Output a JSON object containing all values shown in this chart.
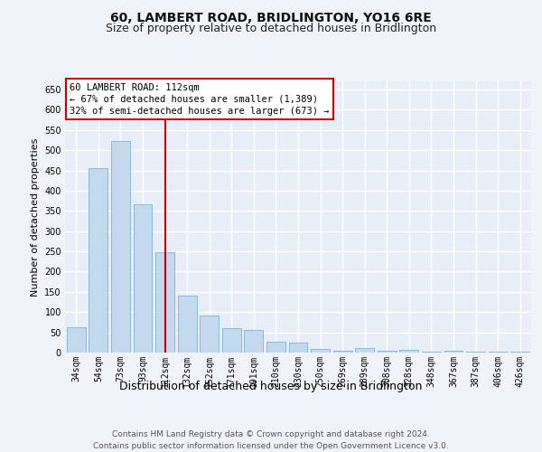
{
  "title": "60, LAMBERT ROAD, BRIDLINGTON, YO16 6RE",
  "subtitle": "Size of property relative to detached houses in Bridlington",
  "xlabel": "Distribution of detached houses by size in Bridlington",
  "ylabel": "Number of detached properties",
  "categories": [
    "34sqm",
    "54sqm",
    "73sqm",
    "93sqm",
    "112sqm",
    "132sqm",
    "152sqm",
    "171sqm",
    "191sqm",
    "210sqm",
    "230sqm",
    "250sqm",
    "269sqm",
    "289sqm",
    "308sqm",
    "328sqm",
    "348sqm",
    "367sqm",
    "387sqm",
    "406sqm",
    "426sqm"
  ],
  "values": [
    62,
    456,
    522,
    367,
    247,
    140,
    92,
    60,
    56,
    26,
    25,
    8,
    5,
    11,
    5,
    7,
    3,
    5,
    2,
    2,
    2
  ],
  "bar_color": "#c2d9ee",
  "bar_edge_color": "#7fb3d8",
  "highlight_index": 4,
  "highlight_line_color": "#cc0000",
  "annotation_line1": "60 LAMBERT ROAD: 112sqm",
  "annotation_line2": "← 67% of detached houses are smaller (1,389)",
  "annotation_line3": "32% of semi-detached houses are larger (673) →",
  "annotation_box_facecolor": "#ffffff",
  "annotation_box_edgecolor": "#cc0000",
  "ylim": [
    0,
    670
  ],
  "yticks": [
    0,
    50,
    100,
    150,
    200,
    250,
    300,
    350,
    400,
    450,
    500,
    550,
    600,
    650
  ],
  "plot_bg_color": "#e8eef8",
  "fig_bg_color": "#f0f4fa",
  "grid_color": "#ffffff",
  "footer_line1": "Contains HM Land Registry data © Crown copyright and database right 2024.",
  "footer_line2": "Contains public sector information licensed under the Open Government Licence v3.0.",
  "title_fontsize": 10,
  "subtitle_fontsize": 9,
  "ylabel_fontsize": 8,
  "xlabel_fontsize": 9,
  "tick_fontsize": 7,
  "ann_fontsize": 7.5,
  "footer_fontsize": 6.5
}
